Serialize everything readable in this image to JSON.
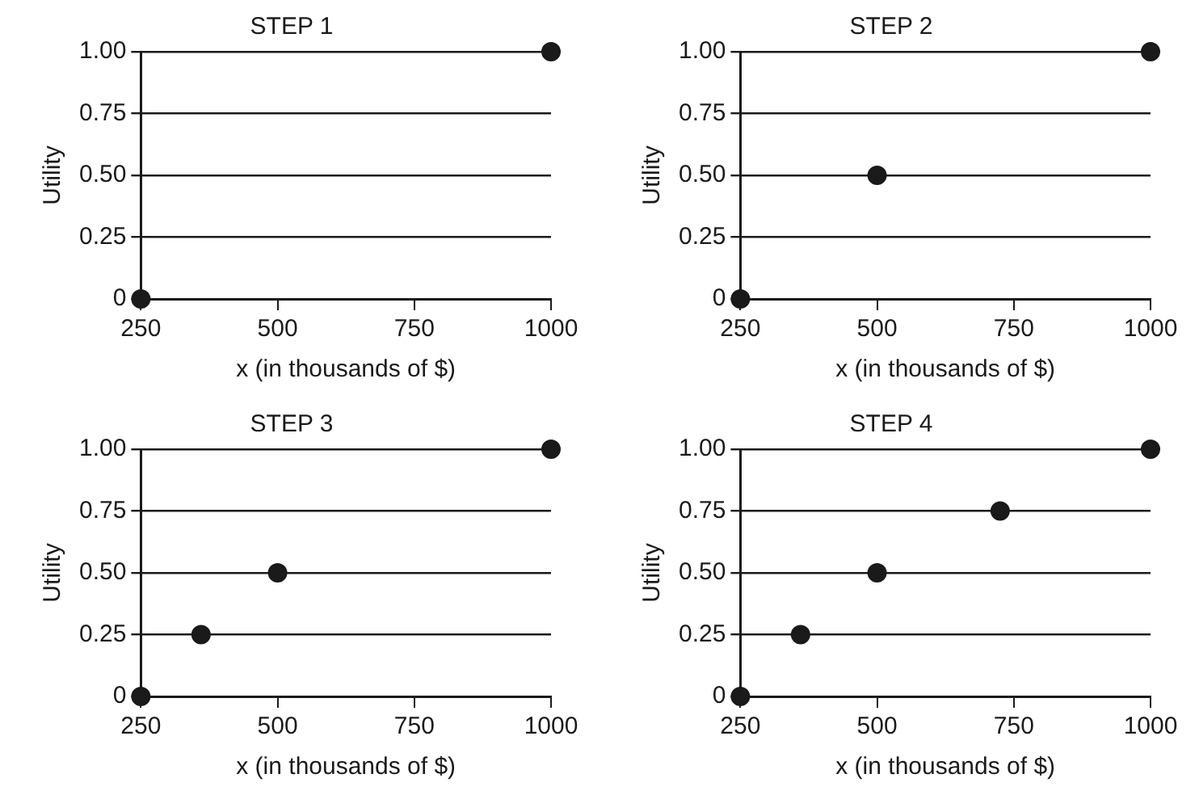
{
  "chart_data": [
    {
      "type": "scatter",
      "title": "STEP 1",
      "xlabel": "x (in thousands of $)",
      "ylabel": "Utility",
      "x": [
        250,
        1000
      ],
      "values": [
        0,
        1
      ],
      "color": "#1a1a1a",
      "marker": "circle",
      "xlim": [
        250,
        1000
      ],
      "xticks": [
        250,
        500,
        750,
        1000
      ],
      "ylim": [
        0,
        1
      ],
      "yticks": [
        {
          "value": 0,
          "label": "0"
        },
        {
          "value": 0.25,
          "label": "0.25"
        },
        {
          "value": 0.5,
          "label": "0.50"
        },
        {
          "value": 0.75,
          "label": "0.75"
        },
        {
          "value": 1,
          "label": "1.00"
        }
      ],
      "grid": "y",
      "legend": false
    },
    {
      "type": "scatter",
      "title": "STEP 2",
      "xlabel": "x (in thousands of $)",
      "ylabel": "Utility",
      "x": [
        250,
        500,
        1000
      ],
      "values": [
        0,
        0.5,
        1
      ],
      "color": "#1a1a1a",
      "marker": "circle",
      "xlim": [
        250,
        1000
      ],
      "xticks": [
        250,
        500,
        750,
        1000
      ],
      "ylim": [
        0,
        1
      ],
      "yticks": [
        {
          "value": 0,
          "label": "0"
        },
        {
          "value": 0.25,
          "label": "0.25"
        },
        {
          "value": 0.5,
          "label": "0.50"
        },
        {
          "value": 0.75,
          "label": "0.75"
        },
        {
          "value": 1,
          "label": "1.00"
        }
      ],
      "grid": "y",
      "legend": false
    },
    {
      "type": "scatter",
      "title": "STEP 3",
      "xlabel": "x (in thousands of $)",
      "ylabel": "Utility",
      "x": [
        250,
        360,
        500,
        1000
      ],
      "values": [
        0,
        0.25,
        0.5,
        1
      ],
      "color": "#1a1a1a",
      "marker": "circle",
      "xlim": [
        250,
        1000
      ],
      "xticks": [
        250,
        500,
        750,
        1000
      ],
      "ylim": [
        0,
        1
      ],
      "yticks": [
        {
          "value": 0,
          "label": "0"
        },
        {
          "value": 0.25,
          "label": "0.25"
        },
        {
          "value": 0.5,
          "label": "0.50"
        },
        {
          "value": 0.75,
          "label": "0.75"
        },
        {
          "value": 1,
          "label": "1.00"
        }
      ],
      "grid": "y",
      "legend": false
    },
    {
      "type": "scatter",
      "title": "STEP 4",
      "xlabel": "x (in thousands of $)",
      "ylabel": "Utility",
      "x": [
        250,
        360,
        500,
        725,
        1000
      ],
      "values": [
        0,
        0.25,
        0.5,
        0.75,
        1
      ],
      "color": "#1a1a1a",
      "marker": "circle",
      "xlim": [
        250,
        1000
      ],
      "xticks": [
        250,
        500,
        750,
        1000
      ],
      "ylim": [
        0,
        1
      ],
      "yticks": [
        {
          "value": 0,
          "label": "0"
        },
        {
          "value": 0.25,
          "label": "0.25"
        },
        {
          "value": 0.5,
          "label": "0.50"
        },
        {
          "value": 0.75,
          "label": "0.75"
        },
        {
          "value": 1,
          "label": "1.00"
        }
      ],
      "grid": "y",
      "legend": false
    }
  ]
}
